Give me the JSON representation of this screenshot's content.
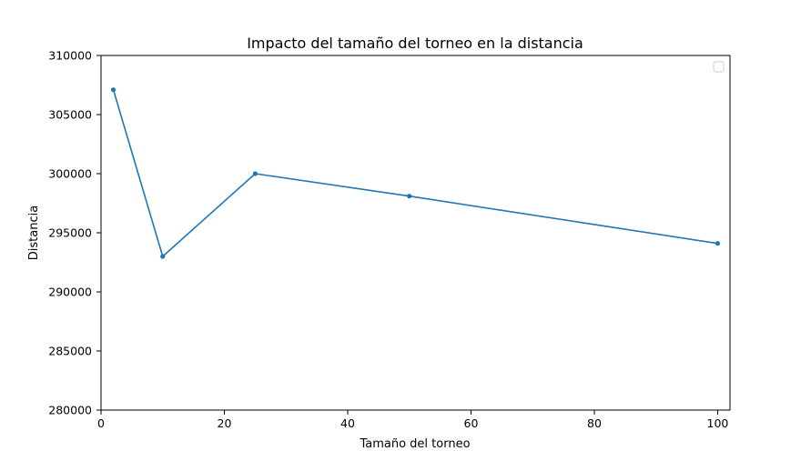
{
  "chart_data": {
    "type": "line",
    "title": "Impacto del tamaño del torneo en la distancia",
    "xlabel": "Tamaño del torneo",
    "ylabel": "Distancia",
    "xlim": [
      0,
      102
    ],
    "ylim": [
      280000,
      310000
    ],
    "x_ticks": [
      0,
      20,
      40,
      60,
      80,
      100
    ],
    "y_ticks": [
      280000,
      285000,
      290000,
      295000,
      300000,
      305000,
      310000
    ],
    "grid": false,
    "legend": {
      "placement": "top-right",
      "entries": []
    },
    "series": [
      {
        "color": "#1f77b4",
        "marker": "circle",
        "x": [
          2,
          10,
          25,
          50,
          100
        ],
        "y": [
          307100,
          293000,
          300000,
          298100,
          294100
        ]
      }
    ]
  }
}
